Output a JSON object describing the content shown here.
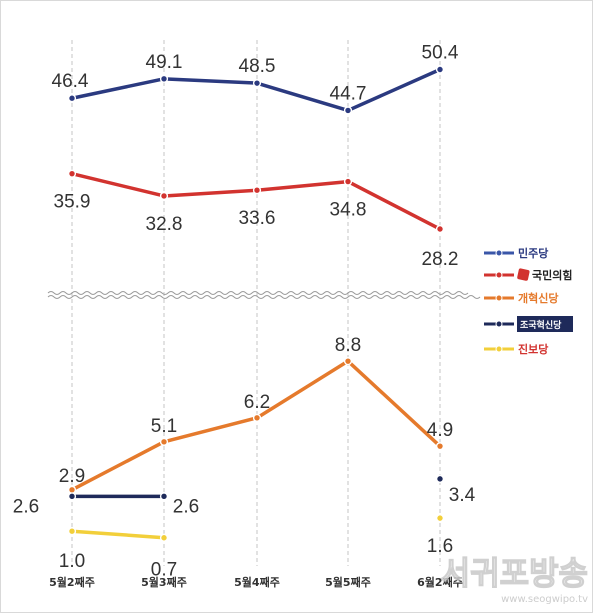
{
  "chart_data": {
    "type": "line",
    "categories": [
      "5월2째주",
      "5월3째주",
      "5월4째주",
      "5월5째주",
      "6월2째주"
    ],
    "series": [
      {
        "name": "민주당",
        "color": "#2b3a80",
        "values": [
          46.4,
          49.1,
          48.5,
          44.7,
          50.4
        ],
        "labels": [
          "46.4",
          "49.1",
          "48.5",
          "44.7",
          "50.4"
        ]
      },
      {
        "name": "국민의힘",
        "color": "#d2332f",
        "values": [
          35.9,
          32.8,
          33.6,
          34.8,
          28.2
        ],
        "labels": [
          "35.9",
          "32.8",
          "33.6",
          "34.8",
          "28.2"
        ]
      },
      {
        "name": "개혁신당",
        "color": "#e57a2c",
        "values": [
          2.9,
          5.1,
          6.2,
          8.8,
          4.9
        ],
        "labels": [
          "2.9",
          "5.1",
          "6.2",
          "8.8",
          "4.9"
        ]
      },
      {
        "name": "조국혁신당",
        "color": "#1e2a5a",
        "values": [
          2.6,
          2.6,
          null,
          null,
          3.4
        ],
        "labels": [
          "2.6",
          "2.6",
          "",
          "",
          "3.4"
        ]
      },
      {
        "name": "진보당",
        "color": "#f2cf3a",
        "values": [
          1.0,
          0.7,
          null,
          null,
          1.6
        ],
        "labels": [
          "1.0",
          "0.7",
          "",
          "",
          "1.6"
        ]
      }
    ],
    "upper_ylim": [
      25,
      52
    ],
    "lower_ylim": [
      0,
      10
    ],
    "axis_break": true,
    "grid": "vertical-dashed",
    "legend_position": "right"
  },
  "legend_colors": {
    "민주당": "#3a56a8",
    "국민의힘": "#d2332f",
    "개혁신당": "#e57a2c",
    "조국혁신당": "#1e2a5a",
    "진보당": "#f2cf3a"
  },
  "legend_labels": {
    "minju": "민주당",
    "ppp": "국민의힘",
    "reform": "개혁신당",
    "cho": "조국혁신당",
    "jinbo": "진보당"
  },
  "watermark": {
    "title": "서귀포방송",
    "url": "www.seogwipo.tv"
  }
}
